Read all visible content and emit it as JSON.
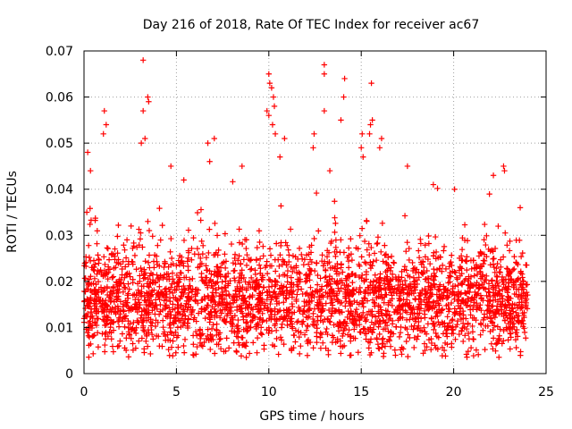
{
  "chart_data": {
    "type": "scatter",
    "title": "Day 216 of 2018, Rate Of TEC Index for receiver ac67",
    "xlabel": "GPS time / hours",
    "ylabel": "ROTI / TECUs",
    "xlim": [
      0,
      25
    ],
    "ylim": [
      0,
      0.07
    ],
    "xticks": [
      "0",
      "5",
      "10",
      "15",
      "20",
      "25"
    ],
    "yticks": [
      "0",
      "0.01",
      "0.02",
      "0.03",
      "0.04",
      "0.05",
      "0.06",
      "0.07"
    ],
    "grid": true,
    "marker": "+",
    "color": "#ff0000",
    "sampling": {
      "x_start": 0,
      "x_end": 24,
      "points_per_hour": 120,
      "baseline": 0.0155,
      "typical_spread": 0.0055
    },
    "outliers": [
      {
        "x": 0.2,
        "y": 0.048
      },
      {
        "x": 0.35,
        "y": 0.044
      },
      {
        "x": 1.1,
        "y": 0.057
      },
      {
        "x": 1.2,
        "y": 0.054
      },
      {
        "x": 1.05,
        "y": 0.052
      },
      {
        "x": 3.2,
        "y": 0.068
      },
      {
        "x": 3.2,
        "y": 0.057
      },
      {
        "x": 3.45,
        "y": 0.06
      },
      {
        "x": 3.5,
        "y": 0.059
      },
      {
        "x": 3.3,
        "y": 0.051
      },
      {
        "x": 3.1,
        "y": 0.05
      },
      {
        "x": 4.7,
        "y": 0.045
      },
      {
        "x": 6.7,
        "y": 0.05
      },
      {
        "x": 7.05,
        "y": 0.051
      },
      {
        "x": 6.8,
        "y": 0.046
      },
      {
        "x": 8.55,
        "y": 0.045
      },
      {
        "x": 10.0,
        "y": 0.065
      },
      {
        "x": 10.05,
        "y": 0.063
      },
      {
        "x": 10.15,
        "y": 0.062
      },
      {
        "x": 10.25,
        "y": 0.06
      },
      {
        "x": 10.3,
        "y": 0.058
      },
      {
        "x": 10.0,
        "y": 0.056
      },
      {
        "x": 10.2,
        "y": 0.054
      },
      {
        "x": 10.35,
        "y": 0.052
      },
      {
        "x": 9.9,
        "y": 0.057
      },
      {
        "x": 10.85,
        "y": 0.051
      },
      {
        "x": 10.6,
        "y": 0.047
      },
      {
        "x": 12.45,
        "y": 0.052
      },
      {
        "x": 12.4,
        "y": 0.049
      },
      {
        "x": 13.0,
        "y": 0.067
      },
      {
        "x": 13.0,
        "y": 0.065
      },
      {
        "x": 13.0,
        "y": 0.057
      },
      {
        "x": 13.3,
        "y": 0.044
      },
      {
        "x": 13.9,
        "y": 0.055
      },
      {
        "x": 14.1,
        "y": 0.064
      },
      {
        "x": 14.05,
        "y": 0.06
      },
      {
        "x": 15.05,
        "y": 0.052
      },
      {
        "x": 15.0,
        "y": 0.049
      },
      {
        "x": 15.1,
        "y": 0.047
      },
      {
        "x": 15.55,
        "y": 0.063
      },
      {
        "x": 15.6,
        "y": 0.055
      },
      {
        "x": 15.5,
        "y": 0.054
      },
      {
        "x": 15.45,
        "y": 0.052
      },
      {
        "x": 16.0,
        "y": 0.049
      },
      {
        "x": 16.1,
        "y": 0.051
      },
      {
        "x": 17.5,
        "y": 0.045
      },
      {
        "x": 22.15,
        "y": 0.043
      },
      {
        "x": 22.7,
        "y": 0.045
      },
      {
        "x": 22.75,
        "y": 0.044
      },
      {
        "x": 0.15,
        "y": 0.035
      },
      {
        "x": 23.6,
        "y": 0.036
      },
      {
        "x": 18.9,
        "y": 0.041
      },
      {
        "x": 20.05,
        "y": 0.04
      },
      {
        "x": 5.4,
        "y": 0.042
      }
    ]
  }
}
